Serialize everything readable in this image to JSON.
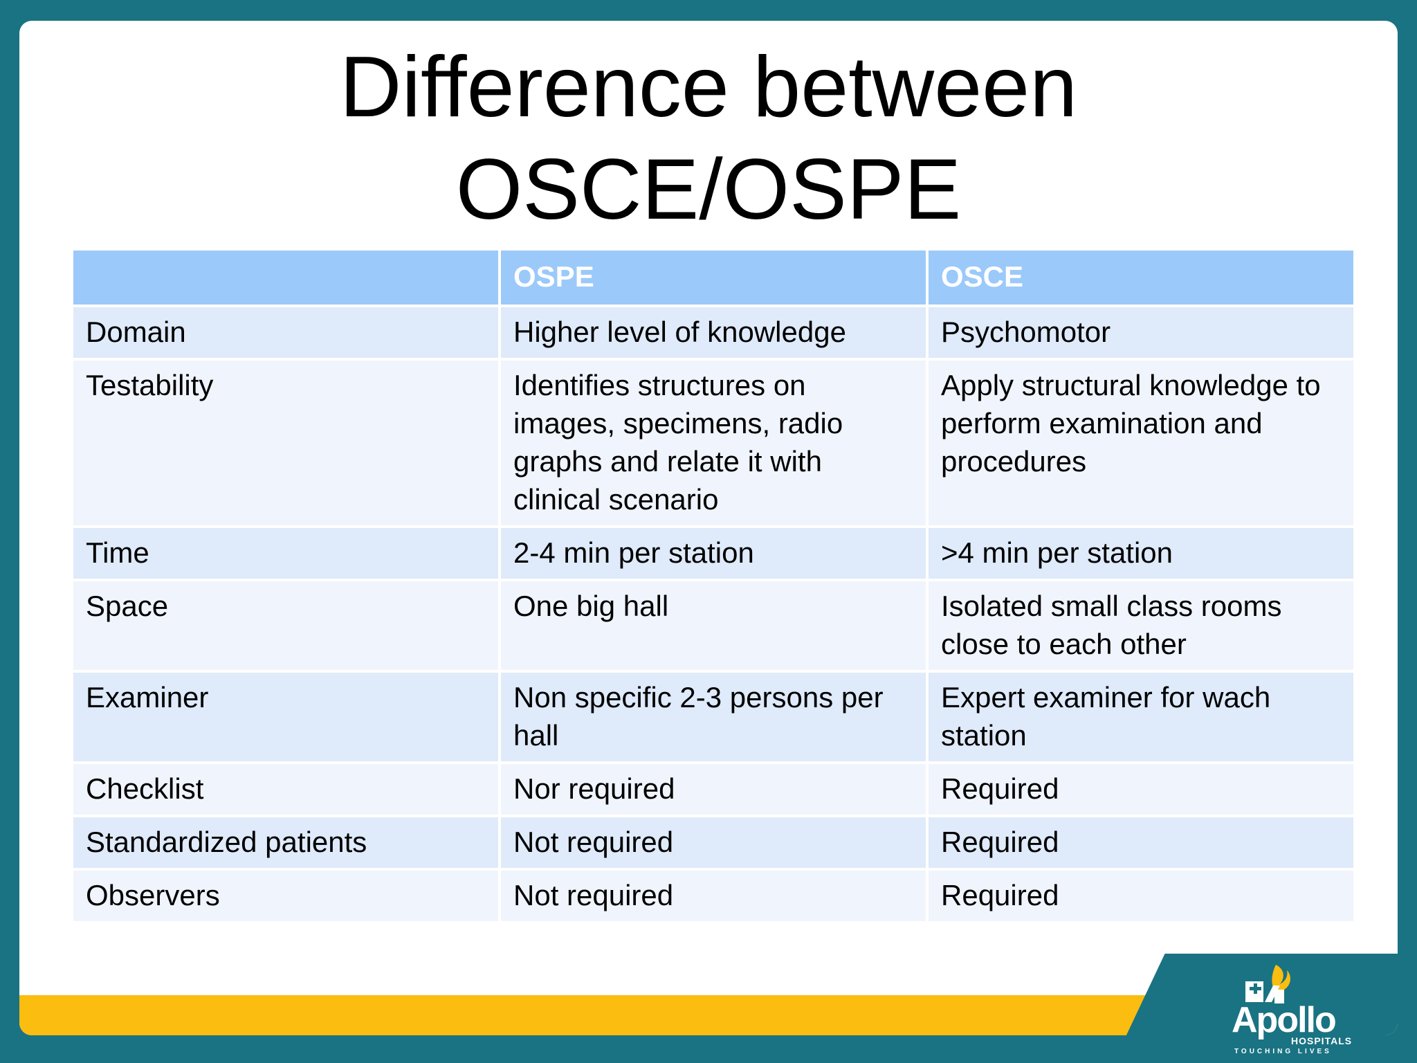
{
  "title": {
    "line1": "Difference between",
    "line2": "OSCE/OSPE"
  },
  "table": {
    "headers": [
      "",
      "OSPE",
      "OSCE"
    ],
    "rows": [
      [
        "Domain",
        "Higher level of knowledge",
        "Psychomotor"
      ],
      [
        "Testability",
        "Identifies structures on images, specimens, radio graphs and relate it with clinical scenario",
        "Apply structural knowledge to perform examination and procedures"
      ],
      [
        "Time",
        "2-4 min per station",
        ">4 min per station"
      ],
      [
        "Space",
        "One big hall",
        "Isolated small class rooms close to each other"
      ],
      [
        "Examiner",
        "Non specific 2-3 persons per hall",
        "Expert examiner for wach station"
      ],
      [
        "Checklist",
        "Nor required",
        "Required"
      ],
      [
        "Standardized patients",
        "Not required",
        "Required"
      ],
      [
        "Observers",
        "Not required",
        "Required"
      ]
    ]
  },
  "logo": {
    "name": "Apollo",
    "sub": "HOSPITALS",
    "tagline": "TOUCHING LIVES",
    "icon": "apollo-torch-icon"
  },
  "colors": {
    "frame": "#1a7382",
    "accent_band": "#fbbd0f",
    "header_fill": "#9bc9fa",
    "row_odd": "#dfeafa",
    "row_even": "#f0f4fc"
  }
}
